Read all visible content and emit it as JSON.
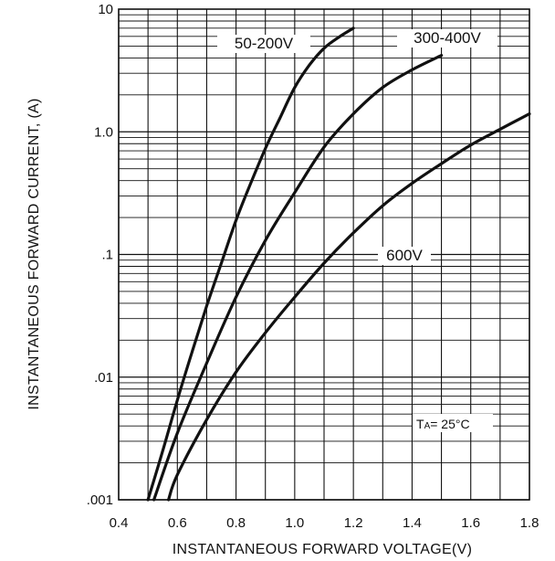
{
  "chart_data": {
    "type": "line",
    "xlabel": "INSTANTANEOUS FORWARD VOLTAGE(V)",
    "ylabel": "INSTANTANEOUS FORWARD CURRENT, (A)",
    "x_scale": "linear",
    "y_scale": "log",
    "xlim": [
      0.4,
      1.8
    ],
    "ylim": [
      0.001,
      10
    ],
    "x_ticks": [
      0.4,
      0.6,
      0.8,
      1.0,
      1.2,
      1.4,
      1.6,
      1.8
    ],
    "x_tick_labels": [
      "0.4",
      "0.6",
      "0.8",
      "1.0",
      "1.2",
      "1.4",
      "1.6",
      "1.8"
    ],
    "y_ticks": [
      0.001,
      0.01,
      0.1,
      1,
      10
    ],
    "y_tick_labels": [
      ".001",
      ".01",
      ".1",
      "1.0",
      "10"
    ],
    "grid": true,
    "annotation": {
      "text_main": "T",
      "text_sub": "A",
      "text_rest": "= 25°C"
    },
    "series": [
      {
        "name": "50-200V",
        "points": [
          [
            0.5,
            0.001
          ],
          [
            0.55,
            0.0025
          ],
          [
            0.6,
            0.0065
          ],
          [
            0.65,
            0.016
          ],
          [
            0.7,
            0.038
          ],
          [
            0.75,
            0.085
          ],
          [
            0.8,
            0.19
          ],
          [
            0.85,
            0.38
          ],
          [
            0.9,
            0.73
          ],
          [
            0.95,
            1.3
          ],
          [
            1.0,
            2.3
          ],
          [
            1.05,
            3.5
          ],
          [
            1.1,
            4.8
          ],
          [
            1.15,
            5.9
          ],
          [
            1.2,
            7.0
          ]
        ]
      },
      {
        "name": "300-400V",
        "points": [
          [
            0.52,
            0.001
          ],
          [
            0.6,
            0.0035
          ],
          [
            0.7,
            0.013
          ],
          [
            0.8,
            0.045
          ],
          [
            0.9,
            0.13
          ],
          [
            1.0,
            0.32
          ],
          [
            1.1,
            0.75
          ],
          [
            1.2,
            1.4
          ],
          [
            1.3,
            2.3
          ],
          [
            1.4,
            3.2
          ],
          [
            1.5,
            4.2
          ]
        ]
      },
      {
        "name": "600V",
        "points": [
          [
            0.57,
            0.001
          ],
          [
            0.6,
            0.0016
          ],
          [
            0.7,
            0.0045
          ],
          [
            0.8,
            0.011
          ],
          [
            0.9,
            0.023
          ],
          [
            1.0,
            0.045
          ],
          [
            1.1,
            0.085
          ],
          [
            1.2,
            0.15
          ],
          [
            1.3,
            0.25
          ],
          [
            1.4,
            0.38
          ],
          [
            1.5,
            0.55
          ],
          [
            1.6,
            0.78
          ],
          [
            1.7,
            1.05
          ],
          [
            1.8,
            1.4
          ]
        ]
      }
    ]
  }
}
